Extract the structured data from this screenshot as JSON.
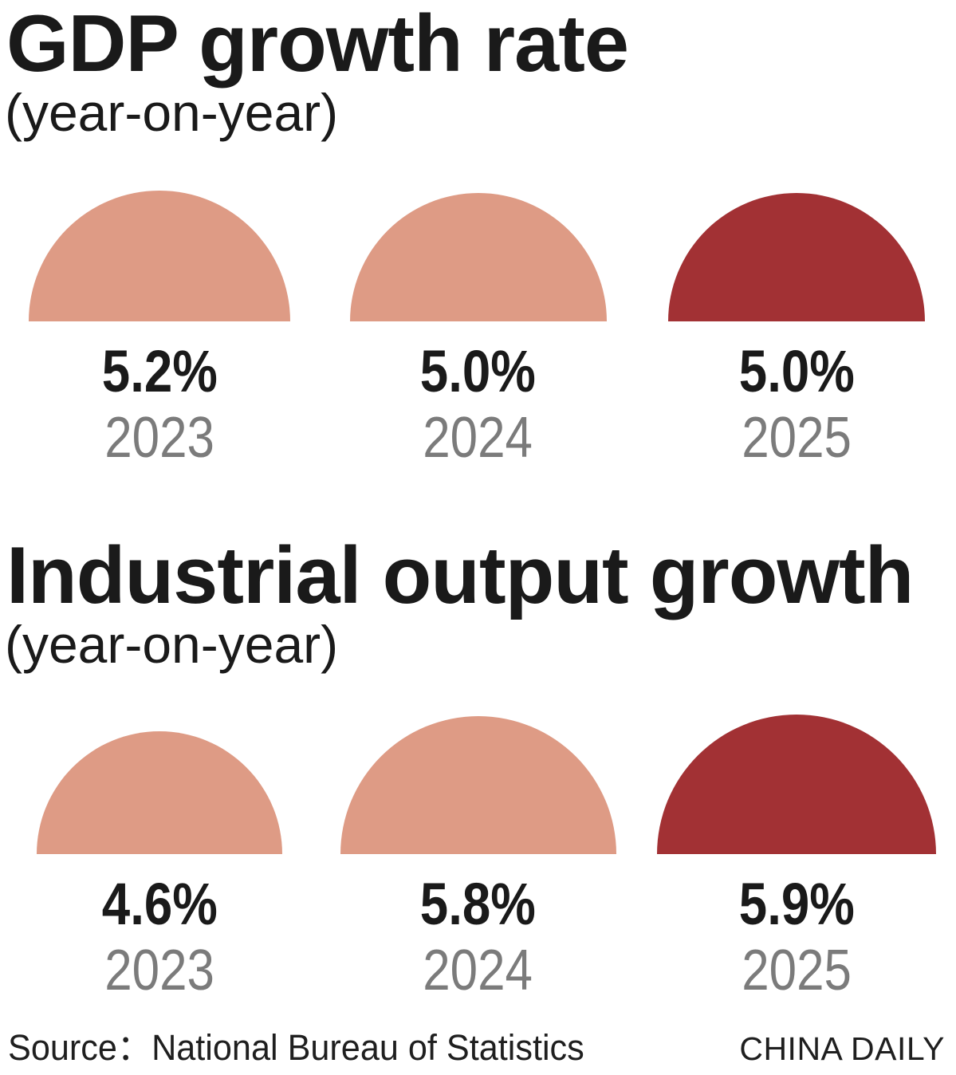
{
  "colors": {
    "salmon": "#de9b85",
    "dark_red": "#a23134",
    "title_black": "#1a1a1a",
    "year_gray": "#7b7b7b",
    "footer_black": "#1f1f1f",
    "background": "#ffffff"
  },
  "charts": [
    {
      "title": "GDP growth rate",
      "subtitle": "(year-on-year)",
      "items": [
        {
          "value": 5.2,
          "value_label": "5.2%",
          "year": "2023",
          "color": "salmon"
        },
        {
          "value": 5.0,
          "value_label": "5.0%",
          "year": "2024",
          "color": "salmon"
        },
        {
          "value": 5.0,
          "value_label": "5.0%",
          "year": "2025",
          "color": "dark_red"
        }
      ]
    },
    {
      "title": "Industrial output growth",
      "subtitle": "(year-on-year)",
      "items": [
        {
          "value": 4.6,
          "value_label": "4.6%",
          "year": "2023",
          "color": "salmon"
        },
        {
          "value": 5.8,
          "value_label": "5.8%",
          "year": "2024",
          "color": "salmon"
        },
        {
          "value": 5.9,
          "value_label": "5.9%",
          "year": "2025",
          "color": "dark_red"
        }
      ]
    }
  ],
  "footer": {
    "source": "Source：National Bureau of Statistics",
    "credit": "CHINA DAILY"
  },
  "chart_data": [
    {
      "type": "bar",
      "variant": "semicircle-area-pictogram",
      "title": "GDP growth rate",
      "subtitle": "(year-on-year)",
      "categories": [
        "2023",
        "2024",
        "2025"
      ],
      "values": [
        5.2,
        5.0,
        5.0
      ],
      "unit": "%",
      "data_labels": [
        "5.2%",
        "5.0%",
        "5.0%"
      ],
      "highlight_index": 2,
      "series_color": "#de9b85",
      "highlight_color": "#a23134",
      "legend": "none",
      "grid": false,
      "note": "semicircle area proportional to value, radius ~ 72*sqrt(value) px"
    },
    {
      "type": "bar",
      "variant": "semicircle-area-pictogram",
      "title": "Industrial output growth",
      "subtitle": "(year-on-year)",
      "categories": [
        "2023",
        "2024",
        "2025"
      ],
      "values": [
        4.6,
        5.8,
        5.9
      ],
      "unit": "%",
      "data_labels": [
        "4.6%",
        "5.8%",
        "5.9%"
      ],
      "highlight_index": 2,
      "series_color": "#de9b85",
      "highlight_color": "#a23134",
      "legend": "none",
      "grid": false,
      "note": "semicircle area proportional to value, radius ~ 72*sqrt(value) px"
    }
  ]
}
